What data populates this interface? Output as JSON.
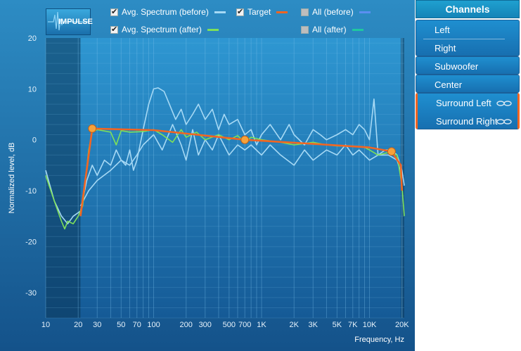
{
  "toolbar": {
    "impulse_label": "IMPULSE"
  },
  "legend": [
    {
      "label": "Avg. Spectrum (before)",
      "checked": true,
      "color": "#a6d9f5"
    },
    {
      "label": "Target",
      "checked": true,
      "color": "#f26522"
    },
    {
      "label": "All (before)",
      "checked": false,
      "color": "#5b8ff0"
    },
    {
      "label": "Avg. Spectrum (after)",
      "checked": true,
      "color": "#7ee05a"
    },
    {
      "label": "All (after)",
      "checked": false,
      "color": "#1fc8a0"
    }
  ],
  "channels": {
    "title": "Channels",
    "items": [
      {
        "label": "Left",
        "linked": false
      },
      {
        "label": "Right",
        "linked": false
      },
      {
        "label": "Subwoofer",
        "linked": false
      },
      {
        "label": "Center",
        "linked": false
      },
      {
        "label": "Surround Left",
        "linked": true
      },
      {
        "label": "Surround Right",
        "linked": true
      }
    ]
  },
  "chart_data": {
    "type": "line",
    "xlabel": "Frequency, Hz",
    "ylabel": "Normalized level, dB",
    "x_scale": "log",
    "xlim": [
      10,
      21000
    ],
    "ylim": [
      -35,
      20
    ],
    "x_ticks": [
      {
        "value": 10,
        "label": "10"
      },
      {
        "value": 20,
        "label": "20"
      },
      {
        "value": 30,
        "label": "30"
      },
      {
        "value": 50,
        "label": "50"
      },
      {
        "value": 70,
        "label": "70"
      },
      {
        "value": 100,
        "label": "100"
      },
      {
        "value": 200,
        "label": "200"
      },
      {
        "value": 300,
        "label": "300"
      },
      {
        "value": 500,
        "label": "500"
      },
      {
        "value": 700,
        "label": "700"
      },
      {
        "value": 1000,
        "label": "1K"
      },
      {
        "value": 2000,
        "label": "2K"
      },
      {
        "value": 3000,
        "label": "3K"
      },
      {
        "value": 5000,
        "label": "5K"
      },
      {
        "value": 7000,
        "label": "7K"
      },
      {
        "value": 10000,
        "label": "10K"
      },
      {
        "value": 20000,
        "label": "20K"
      }
    ],
    "y_ticks": [
      20,
      10,
      0,
      -10,
      -20,
      -30
    ],
    "excluded_range_hz": [
      10,
      21
    ],
    "series": [
      {
        "role": "target",
        "color": "#f26522",
        "points": [
          [
            21,
            -15
          ],
          [
            27,
            2.2
          ],
          [
            100,
            1.9
          ],
          [
            700,
            0
          ],
          [
            3000,
            -0.8
          ],
          [
            10000,
            -1.5
          ],
          [
            16000,
            -2.3
          ],
          [
            19500,
            -5
          ],
          [
            20000,
            -10
          ]
        ],
        "handles": [
          [
            27,
            2.2
          ],
          [
            700,
            0
          ],
          [
            16000,
            -2.3
          ]
        ]
      },
      {
        "role": "avg_before",
        "color": "#a6d9f5",
        "points": [
          [
            10,
            -6
          ],
          [
            12,
            -12
          ],
          [
            14,
            -15
          ],
          [
            16,
            -16.5
          ],
          [
            18,
            -15
          ],
          [
            21,
            -14
          ],
          [
            24,
            -8
          ],
          [
            27,
            -5
          ],
          [
            30,
            -7
          ],
          [
            35,
            -4
          ],
          [
            40,
            -5
          ],
          [
            45,
            -2
          ],
          [
            50,
            -4
          ],
          [
            55,
            -5
          ],
          [
            60,
            -2
          ],
          [
            65,
            -6
          ],
          [
            70,
            -4
          ],
          [
            80,
            2
          ],
          [
            90,
            7
          ],
          [
            100,
            10
          ],
          [
            110,
            10.2
          ],
          [
            125,
            9.5
          ],
          [
            140,
            7
          ],
          [
            160,
            4
          ],
          [
            180,
            6
          ],
          [
            200,
            3
          ],
          [
            230,
            5
          ],
          [
            260,
            7
          ],
          [
            300,
            4
          ],
          [
            350,
            6
          ],
          [
            400,
            2
          ],
          [
            450,
            5
          ],
          [
            500,
            3
          ],
          [
            600,
            4
          ],
          [
            700,
            1
          ],
          [
            800,
            2
          ],
          [
            900,
            -1
          ],
          [
            1000,
            1
          ],
          [
            1200,
            3
          ],
          [
            1500,
            0
          ],
          [
            1800,
            3
          ],
          [
            2000,
            1
          ],
          [
            2500,
            -1
          ],
          [
            3000,
            2
          ],
          [
            3500,
            1
          ],
          [
            4000,
            0
          ],
          [
            5000,
            1
          ],
          [
            6000,
            2
          ],
          [
            7000,
            1
          ],
          [
            8000,
            3
          ],
          [
            9000,
            2
          ],
          [
            10000,
            0
          ],
          [
            11000,
            8
          ],
          [
            12000,
            -3
          ],
          [
            14000,
            -2
          ],
          [
            16000,
            -2
          ],
          [
            18000,
            -3
          ],
          [
            20000,
            -6
          ],
          [
            21000,
            -9
          ]
        ]
      },
      {
        "role": "avg_before_2",
        "color": "#a6d9f5",
        "points": [
          [
            21,
            -13
          ],
          [
            25,
            -10
          ],
          [
            30,
            -8
          ],
          [
            40,
            -6
          ],
          [
            50,
            -4
          ],
          [
            60,
            -5
          ],
          [
            70,
            -3
          ],
          [
            80,
            -1
          ],
          [
            100,
            1
          ],
          [
            120,
            -2
          ],
          [
            150,
            3
          ],
          [
            180,
            -1
          ],
          [
            200,
            -4
          ],
          [
            230,
            2
          ],
          [
            260,
            -3
          ],
          [
            300,
            0
          ],
          [
            350,
            -2
          ],
          [
            400,
            1
          ],
          [
            500,
            -3
          ],
          [
            600,
            -1
          ],
          [
            700,
            -2
          ],
          [
            800,
            -1
          ],
          [
            1000,
            -3
          ],
          [
            1200,
            -1
          ],
          [
            1500,
            -3
          ],
          [
            2000,
            -5
          ],
          [
            2500,
            -2
          ],
          [
            3000,
            -4
          ],
          [
            4000,
            -2
          ],
          [
            5000,
            -3
          ],
          [
            6000,
            -1
          ],
          [
            7000,
            -3
          ],
          [
            8000,
            -2
          ],
          [
            10000,
            -4
          ],
          [
            12000,
            -3
          ],
          [
            15000,
            -3
          ],
          [
            18000,
            -4
          ],
          [
            20000,
            -7
          ]
        ]
      },
      {
        "role": "avg_after",
        "color": "#7ee05a",
        "points": [
          [
            10,
            -7
          ],
          [
            12,
            -12
          ],
          [
            14,
            -16
          ],
          [
            15,
            -17.5
          ],
          [
            16,
            -16
          ],
          [
            18,
            -16.5
          ],
          [
            20,
            -15
          ],
          [
            22,
            -13
          ],
          [
            25,
            -2
          ],
          [
            27,
            1.5
          ],
          [
            30,
            2
          ],
          [
            40,
            1.5
          ],
          [
            45,
            -1
          ],
          [
            50,
            1.8
          ],
          [
            60,
            1.5
          ],
          [
            80,
            1.6
          ],
          [
            100,
            2
          ],
          [
            120,
            1
          ],
          [
            150,
            -0.5
          ],
          [
            180,
            2
          ],
          [
            200,
            0.5
          ],
          [
            250,
            1.5
          ],
          [
            300,
            0
          ],
          [
            400,
            1
          ],
          [
            500,
            0
          ],
          [
            600,
            0.8
          ],
          [
            700,
            -0.5
          ],
          [
            800,
            0.5
          ],
          [
            1000,
            0
          ],
          [
            1500,
            -0.5
          ],
          [
            2000,
            -1
          ],
          [
            3000,
            -0.5
          ],
          [
            4000,
            -1
          ],
          [
            5000,
            -1.2
          ],
          [
            7000,
            -1.3
          ],
          [
            9000,
            -1.5
          ],
          [
            10000,
            -2
          ],
          [
            12000,
            -3
          ],
          [
            15000,
            -2.5
          ],
          [
            18000,
            -3
          ],
          [
            20000,
            -9
          ],
          [
            21000,
            -15
          ]
        ]
      }
    ]
  }
}
